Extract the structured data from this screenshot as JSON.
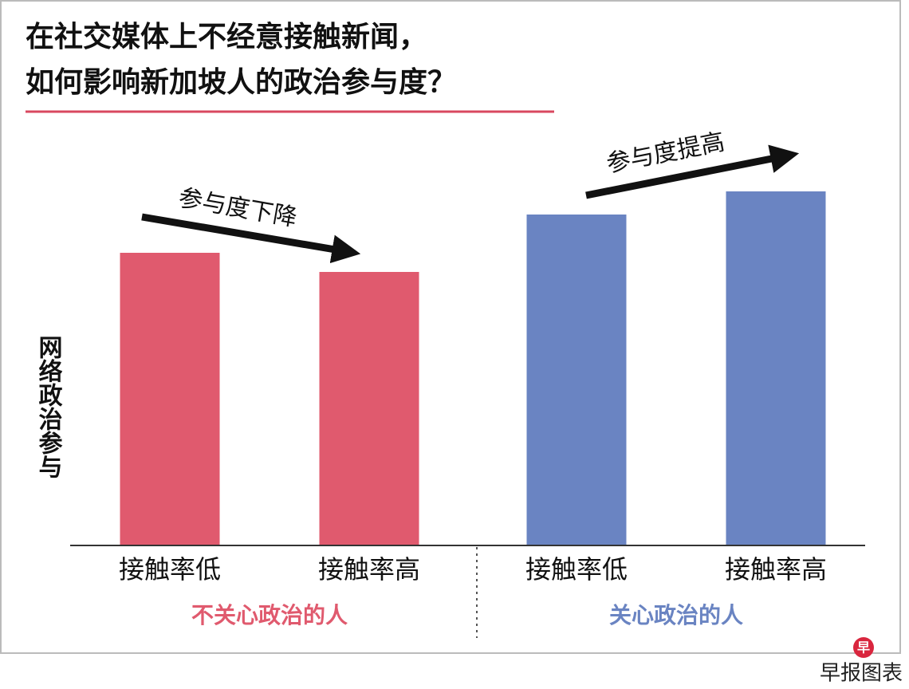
{
  "chart_data": {
    "type": "bar",
    "title": [
      "在社交媒体上不经意接触新闻，",
      "如何影响新加坡人的政治参与度？"
    ],
    "ylabel": "网络政治参与",
    "ylim": [
      0,
      500
    ],
    "groups": [
      {
        "name": "不关心政治的人",
        "color": "#e05a6e",
        "categories": [
          "接触率低",
          "接触率高"
        ],
        "values": [
          366,
          342
        ]
      },
      {
        "name": "关心政治的人",
        "color": "#6a84c2",
        "categories": [
          "接触率低",
          "接触率高"
        ],
        "values": [
          414,
          443
        ]
      }
    ],
    "annotations": [
      "参与度下降",
      "参与度提高"
    ],
    "source": "早报图表"
  }
}
